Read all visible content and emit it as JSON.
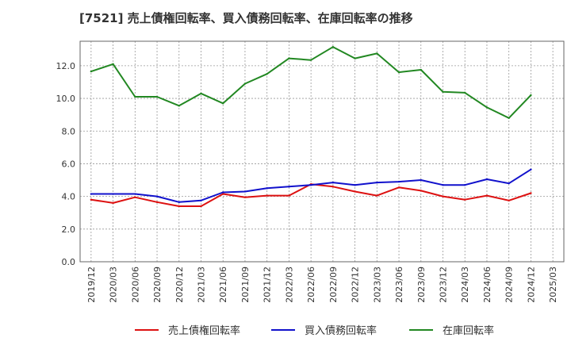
{
  "chart_data": {
    "type": "line",
    "title": "[7521]  売上債権回転率、買入債務回転率、在庫回転率の推移",
    "xlabel": "",
    "ylabel": "",
    "ylim": [
      0,
      13.5
    ],
    "yticks": [
      0,
      2,
      4,
      6,
      8,
      10,
      12
    ],
    "x_tick_labels": [
      "2019/12",
      "2020/03",
      "2020/06",
      "2020/09",
      "2020/12",
      "2021/03",
      "2021/06",
      "2021/09",
      "2021/12",
      "2022/03",
      "2022/06",
      "2022/09",
      "2022/12",
      "2023/03",
      "2023/06",
      "2023/09",
      "2023/12",
      "2024/03",
      "2024/06",
      "2024/09",
      "2024/12",
      "2025/03"
    ],
    "categories": [
      "2019/12",
      "2020/03",
      "2020/06",
      "2020/09",
      "2020/12",
      "2021/03",
      "2021/06",
      "2021/09",
      "2021/12",
      "2022/03",
      "2022/06",
      "2022/09",
      "2022/12",
      "2023/03",
      "2023/06",
      "2023/09",
      "2023/12",
      "2024/03",
      "2024/06",
      "2024/09",
      "2024/12"
    ],
    "grid": true,
    "legend_position": "bottom",
    "series": [
      {
        "name": "売上債権回転率",
        "color": "#dd1111",
        "values": [
          3.8,
          3.6,
          3.95,
          3.65,
          3.4,
          3.4,
          4.15,
          3.95,
          4.05,
          4.05,
          4.75,
          4.6,
          4.3,
          4.05,
          4.55,
          4.35,
          4.0,
          3.8,
          4.05,
          3.75,
          4.2
        ]
      },
      {
        "name": "買入債務回転率",
        "color": "#1111cc",
        "values": [
          4.15,
          4.15,
          4.15,
          4.0,
          3.65,
          3.75,
          4.25,
          4.3,
          4.5,
          4.6,
          4.7,
          4.85,
          4.7,
          4.85,
          4.9,
          5.0,
          4.7,
          4.7,
          5.05,
          4.8,
          5.65
        ]
      },
      {
        "name": "在庫回転率",
        "color": "#228822",
        "values": [
          11.65,
          12.1,
          10.1,
          10.1,
          9.55,
          10.3,
          9.7,
          10.9,
          11.5,
          12.45,
          12.35,
          13.15,
          12.45,
          12.75,
          11.6,
          11.75,
          10.4,
          10.35,
          9.45,
          8.8,
          10.2
        ]
      }
    ]
  }
}
